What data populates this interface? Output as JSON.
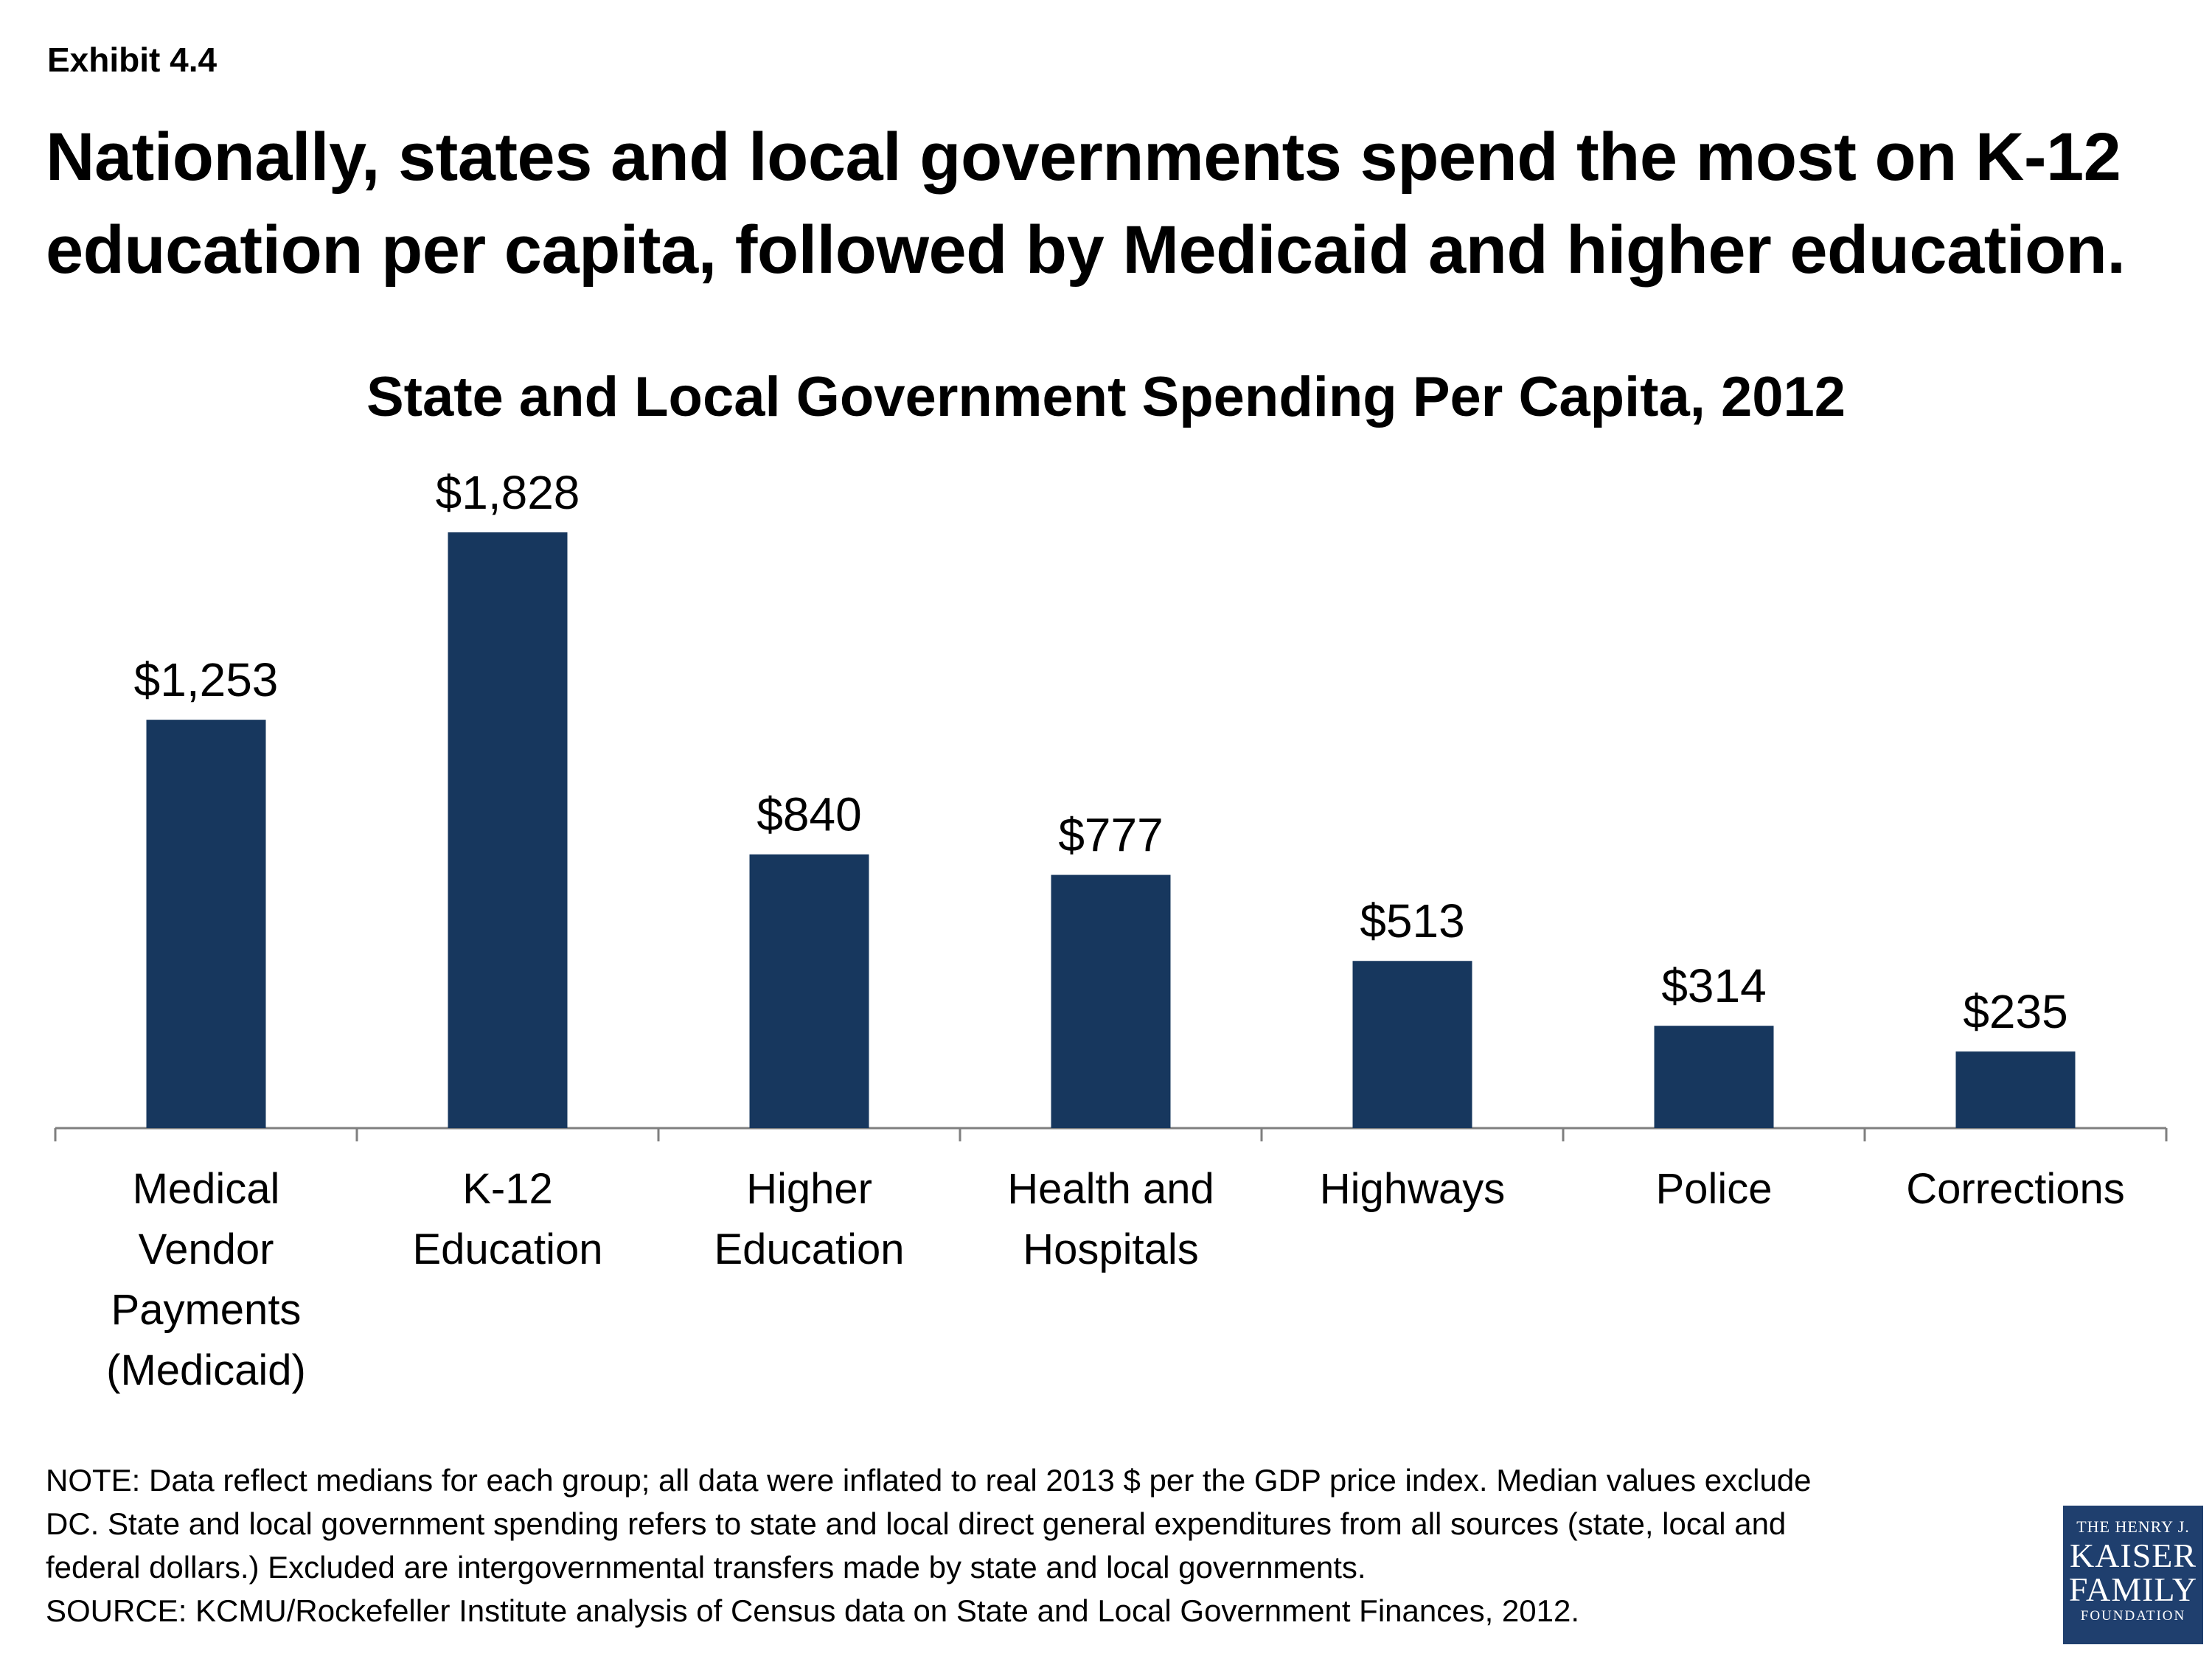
{
  "exhibit_label": "Exhibit 4.4",
  "headline": "Nationally, states and local governments spend the most on K-12 education per capita, followed by Medicaid and higher education.",
  "chart_data": {
    "type": "bar",
    "title": "State and Local Government Spending Per Capita, 2012",
    "categories": [
      [
        "Medical",
        "Vendor",
        "Payments",
        "(Medicaid)"
      ],
      [
        "K-12",
        "Education"
      ],
      [
        "Higher",
        "Education"
      ],
      [
        "Health and",
        "Hospitals"
      ],
      [
        "Highways"
      ],
      [
        "Police"
      ],
      [
        "Corrections"
      ]
    ],
    "values": [
      1253,
      1828,
      840,
      777,
      513,
      314,
      235
    ],
    "data_labels": [
      "$1,253",
      "$1,828",
      "$840",
      "$777",
      "$513",
      "$314",
      "$235"
    ],
    "xlabel": "",
    "ylabel": "",
    "ylim": [
      0,
      1828
    ],
    "bar_color": "#17375e",
    "grid": false
  },
  "notes": [
    "NOTE: Data reflect medians for each group; all data were inflated to real 2013 $ per the GDP price index. Median values exclude",
    "DC. State and local government spending refers to state and local direct general expenditures from all sources (state, local and",
    "federal dollars.) Excluded are intergovernmental transfers made by state and local governments.",
    "SOURCE: KCMU/Rockefeller Institute analysis of Census data on State and Local Government Finances, 2012."
  ],
  "logo": {
    "line1": "THE HENRY J.",
    "line2": "KAISER",
    "line3": "FAMILY",
    "line4": "FOUNDATION",
    "color": "#1f3f6e"
  }
}
